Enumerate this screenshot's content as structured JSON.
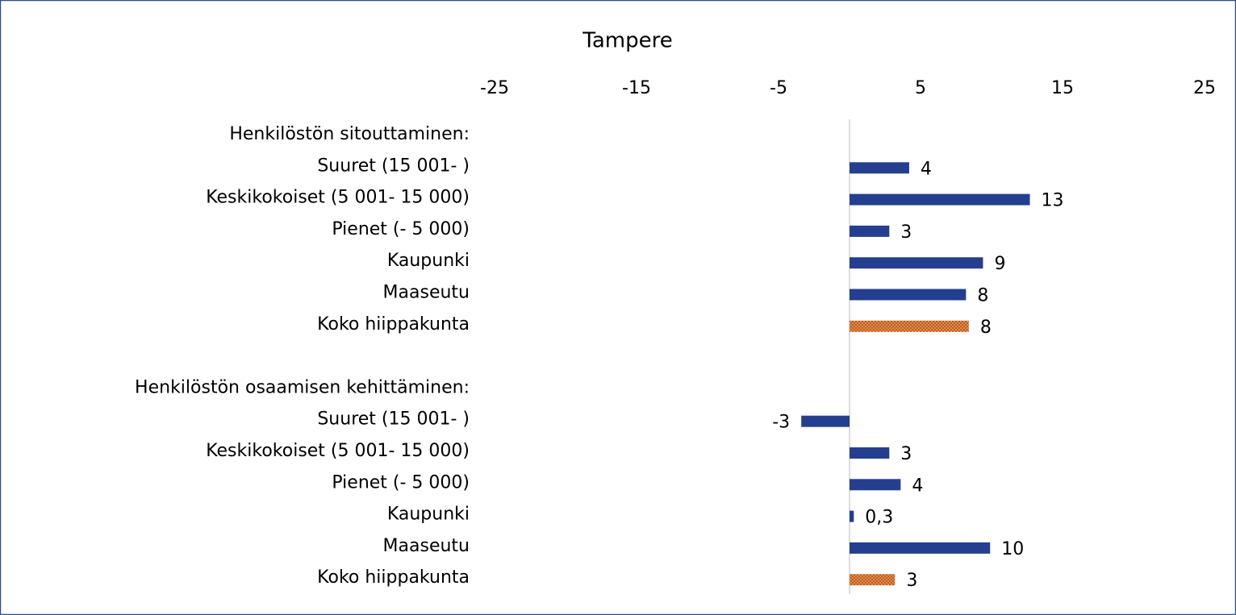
{
  "chart_data": {
    "type": "barh",
    "title": "Tampere",
    "categories": [
      "Henkilöstön sitouttaminen:",
      "Suuret (15 001- )",
      "Keskikokoiset (5 001- 15 000)",
      "Pienet (- 5 000)",
      "Kaupunki",
      "Maaseutu",
      "Koko hiippakunta",
      null,
      "Henkilöstön osaamisen kehittäminen:",
      "Suuret (15 001- )",
      "Keskikokoiset (5 001- 15 000)",
      "Pienet (- 5 000)",
      "Kaupunki",
      "Maaseutu",
      "Koko hiippakunta"
    ],
    "values": [
      null,
      4.2,
      12.7,
      2.8,
      9.4,
      8.2,
      8.4,
      null,
      null,
      -3.4,
      2.8,
      3.6,
      0.3,
      9.9,
      3.2
    ],
    "value_labels": [
      null,
      "4",
      "13",
      "3",
      "9",
      "8",
      "8",
      null,
      null,
      "-3",
      "3",
      "4",
      "0,3",
      "10",
      "3"
    ],
    "colors": [
      null,
      "#243f8f",
      "#243f8f",
      "#243f8f",
      "#243f8f",
      "#243f8f",
      "#c55a11",
      null,
      null,
      "#243f8f",
      "#243f8f",
      "#243f8f",
      "#243f8f",
      "#243f8f",
      "#c55a11"
    ],
    "xlim": [
      -25,
      25
    ],
    "xticks": [
      -25,
      -15,
      -5,
      5,
      15,
      25
    ],
    "grid": false
  }
}
